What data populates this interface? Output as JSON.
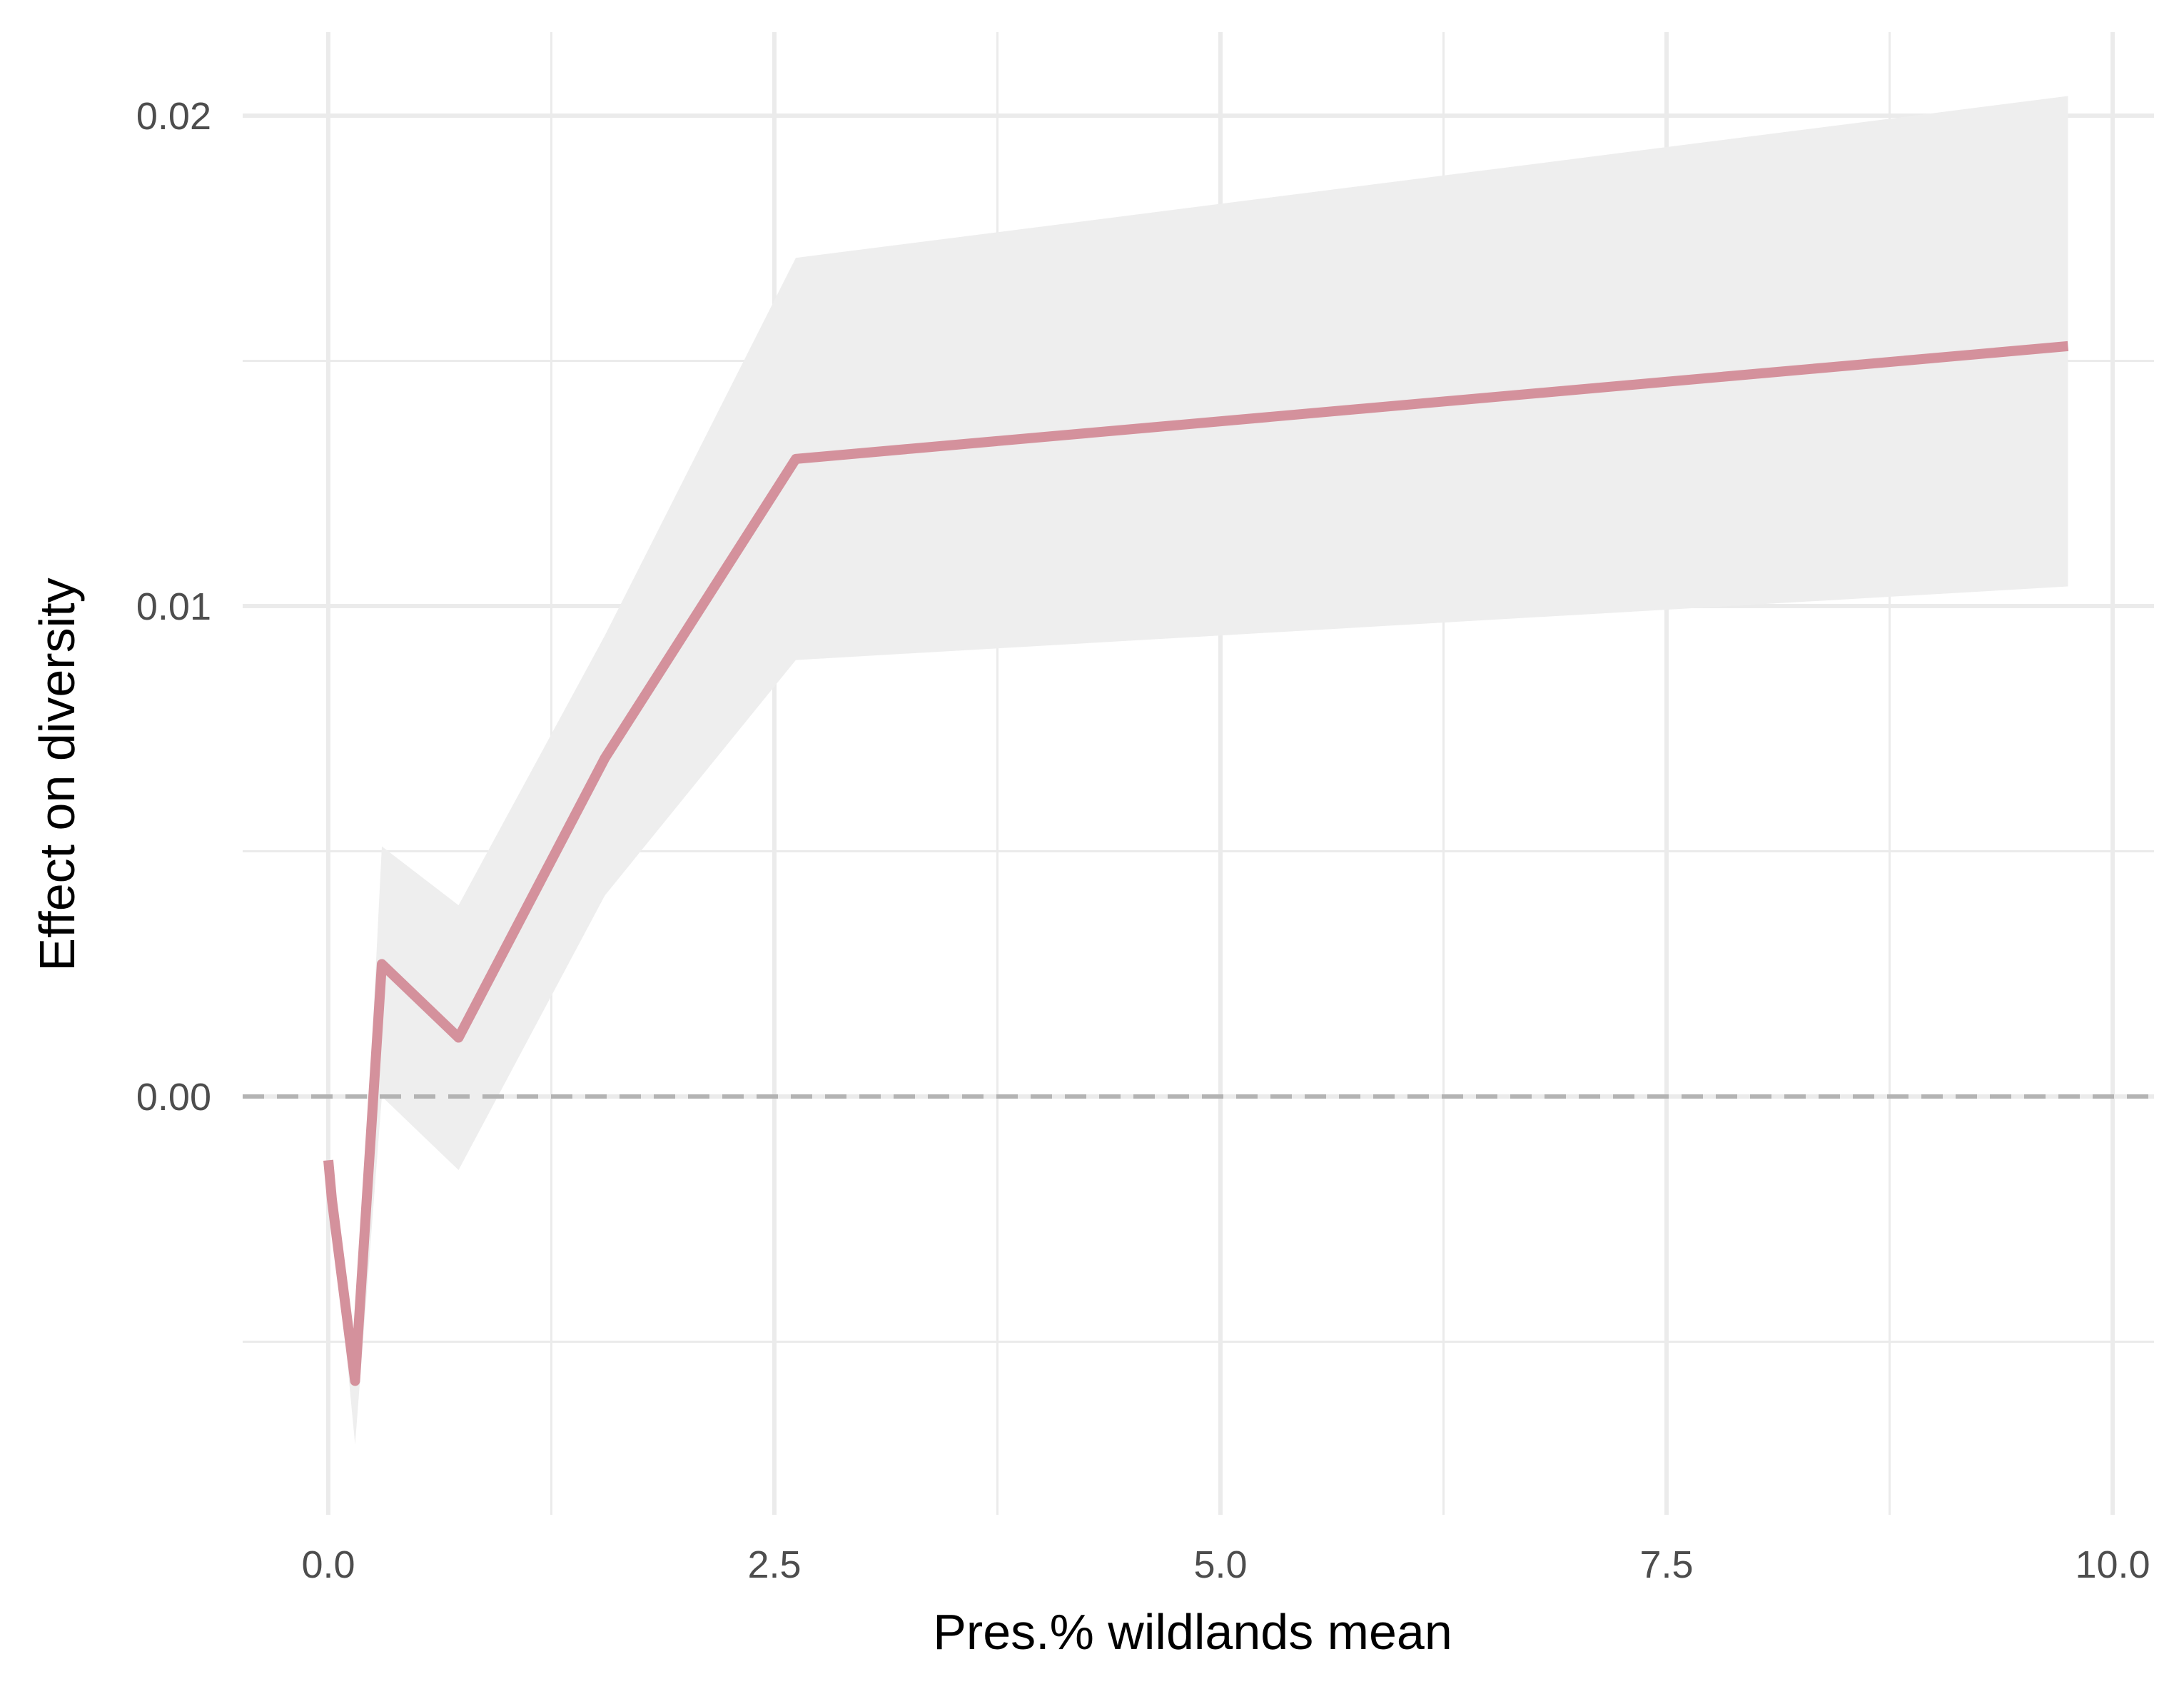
{
  "chart_data": {
    "type": "line",
    "xlabel": "Pres.% wildlands mean",
    "ylabel": "Effect on diversity",
    "xlim": [
      -0.5,
      10.25
    ],
    "ylim": [
      -0.0082,
      0.0223
    ],
    "x_ticks": [
      {
        "value": 0.0,
        "label": "0.0"
      },
      {
        "value": 2.5,
        "label": "2.5"
      },
      {
        "value": 5.0,
        "label": "5.0"
      },
      {
        "value": 7.5,
        "label": "7.5"
      },
      {
        "value": 10.0,
        "label": "10.0"
      }
    ],
    "y_ticks": [
      {
        "value": 0.0,
        "label": "0.00"
      },
      {
        "value": 0.01,
        "label": "0.01"
      },
      {
        "value": 0.02,
        "label": "0.02"
      }
    ],
    "x_minor_ticks": [
      1.25,
      3.75,
      6.25,
      8.75
    ],
    "y_minor_ticks": [
      -0.005,
      0.005,
      0.015
    ],
    "grid": true,
    "reference_line": {
      "y": 0.0,
      "style": "dashed",
      "color": "#b3b3b3"
    },
    "series": [
      {
        "color": "#d4919c",
        "x": [
          0.0,
          0.02,
          0.15,
          0.3,
          0.73,
          1.55,
          2.62,
          9.75
        ],
        "y": [
          -0.0013,
          -0.0021,
          -0.0058,
          0.0027,
          0.0012,
          0.0069,
          0.013,
          0.0153
        ],
        "ribbon": {
          "color": "#eeeeee",
          "upper": [
            -0.0013,
            -0.0021,
            -0.0058,
            0.0051,
            0.0039,
            0.0094,
            0.0171,
            0.0204
          ],
          "lower": [
            -0.0013,
            -0.0021,
            -0.0071,
            0.0,
            -0.0015,
            0.0041,
            0.0089,
            0.0104
          ]
        }
      }
    ]
  }
}
